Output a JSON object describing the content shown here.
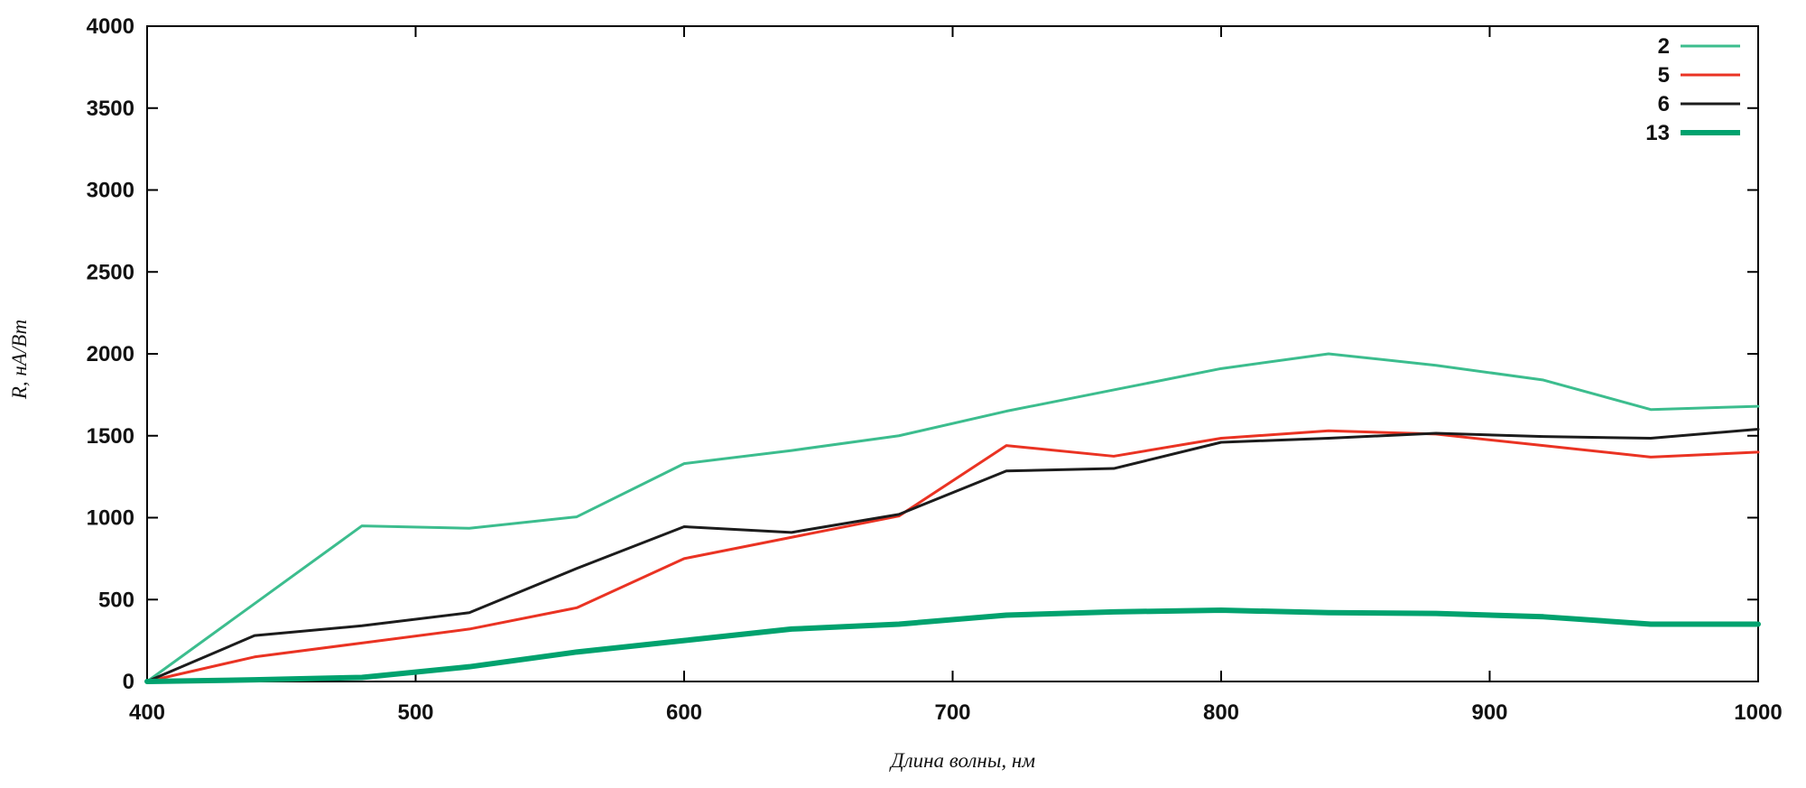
{
  "figure": {
    "background": "#ffffff",
    "border_color": "#000000"
  },
  "chart_data": {
    "type": "line",
    "title": "",
    "xlabel": "Длина волны, нм",
    "ylabel": "R, нА/Вт",
    "xlim": [
      400,
      1000
    ],
    "ylim": [
      0,
      4000
    ],
    "xticks": [
      400,
      500,
      600,
      700,
      800,
      900,
      1000
    ],
    "yticks": [
      0,
      500,
      1000,
      1500,
      2000,
      2500,
      3000,
      3500,
      4000
    ],
    "grid": false,
    "legend_position": "top-right",
    "x": [
      400,
      440,
      480,
      520,
      560,
      600,
      640,
      680,
      720,
      760,
      800,
      840,
      880,
      920,
      960,
      1000
    ],
    "series": [
      {
        "name": "2",
        "color": "#3cbd8e",
        "width": 3,
        "values": [
          0,
          475,
          950,
          935,
          1005,
          1330,
          1410,
          1500,
          1650,
          1780,
          1910,
          2000,
          1930,
          1840,
          1660,
          1680
        ]
      },
      {
        "name": "5",
        "color": "#ea3323",
        "width": 3,
        "values": [
          0,
          150,
          235,
          320,
          450,
          750,
          880,
          1010,
          1440,
          1375,
          1485,
          1530,
          1510,
          1440,
          1370,
          1400
        ]
      },
      {
        "name": "6",
        "color": "#1c1c1c",
        "width": 3,
        "values": [
          0,
          280,
          340,
          420,
          690,
          945,
          910,
          1020,
          1285,
          1300,
          1460,
          1485,
          1515,
          1495,
          1485,
          1540
        ]
      },
      {
        "name": "13",
        "color": "#00a26e",
        "width": 6,
        "values": [
          0,
          10,
          25,
          90,
          180,
          250,
          320,
          350,
          405,
          425,
          435,
          420,
          415,
          395,
          350,
          350
        ]
      }
    ],
    "axis_color": "#000000",
    "tick_label_color": "#121212"
  }
}
